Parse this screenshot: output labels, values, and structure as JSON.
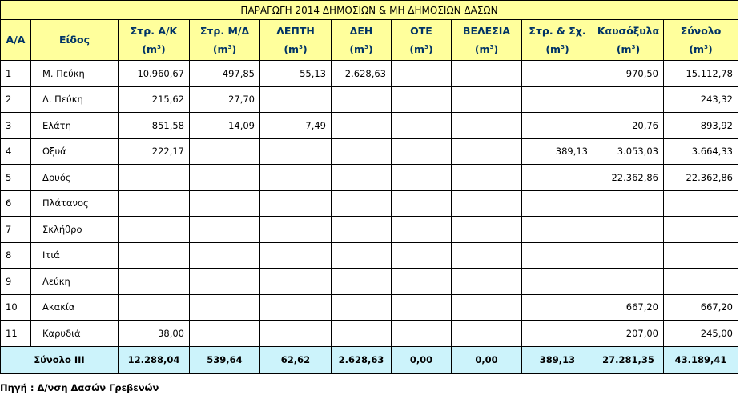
{
  "title": "ΠΑΡΑΓΩΓΗ 2014 ΔΗΜΟΣΙΩΝ & ΜΗ ΔΗΜΟΣΙΩΝ ΔΑΣΩΝ",
  "unit": "m",
  "unit_exp": "3",
  "headers": [
    "Α/Α",
    "Είδος",
    "Στρ. Α/Κ",
    "Στρ. Μ/Δ",
    "ΛΕΠΤΗ",
    "ΔΕΗ",
    "ΟΤΕ",
    "ΒΕΛΕΣΙΑ",
    "Στρ. & Σχ.",
    "Καυσόξυλα",
    "Σύνολο"
  ],
  "rows": [
    {
      "aa": "1",
      "kind": "Μ. Πεύκη",
      "vals": [
        "10.960,67",
        "497,85",
        "55,13",
        "2.628,63",
        "",
        "",
        "",
        "970,50",
        "15.112,78"
      ]
    },
    {
      "aa": "2",
      "kind": "Λ. Πεύκη",
      "vals": [
        "215,62",
        "27,70",
        "",
        "",
        "",
        "",
        "",
        "",
        "243,32"
      ]
    },
    {
      "aa": "3",
      "kind": "Ελάτη",
      "vals": [
        "851,58",
        "14,09",
        "7,49",
        "",
        "",
        "",
        "",
        "20,76",
        "893,92"
      ]
    },
    {
      "aa": "4",
      "kind": "Οξυά",
      "vals": [
        "222,17",
        "",
        "",
        "",
        "",
        "",
        "389,13",
        "3.053,03",
        "3.664,33"
      ]
    },
    {
      "aa": "5",
      "kind": "Δρυός",
      "vals": [
        "",
        "",
        "",
        "",
        "",
        "",
        "",
        "22.362,86",
        "22.362,86"
      ]
    },
    {
      "aa": "6",
      "kind": "Πλάτανος",
      "vals": [
        "",
        "",
        "",
        "",
        "",
        "",
        "",
        "",
        ""
      ]
    },
    {
      "aa": "7",
      "kind": "Σκλήθρο",
      "vals": [
        "",
        "",
        "",
        "",
        "",
        "",
        "",
        "",
        ""
      ]
    },
    {
      "aa": "8",
      "kind": "Ιτιά",
      "vals": [
        "",
        "",
        "",
        "",
        "",
        "",
        "",
        "",
        ""
      ]
    },
    {
      "aa": "9",
      "kind": "Λεύκη",
      "vals": [
        "",
        "",
        "",
        "",
        "",
        "",
        "",
        "",
        ""
      ]
    },
    {
      "aa": "10",
      "kind": "Ακακία",
      "vals": [
        "",
        "",
        "",
        "",
        "",
        "",
        "",
        "667,20",
        "667,20"
      ]
    },
    {
      "aa": "11",
      "kind": "Καρυδιά",
      "vals": [
        "38,00",
        "",
        "",
        "",
        "",
        "",
        "",
        "207,00",
        "245,00"
      ]
    }
  ],
  "total": {
    "label": "Σύνολο ΙΙΙ",
    "vals": [
      "12.288,04",
      "539,64",
      "62,62",
      "2.628,63",
      "0,00",
      "0,00",
      "389,13",
      "27.281,35",
      "43.189,41"
    ]
  },
  "source": "Πηγή : Δ/νση Δασών Γρεβενών"
}
